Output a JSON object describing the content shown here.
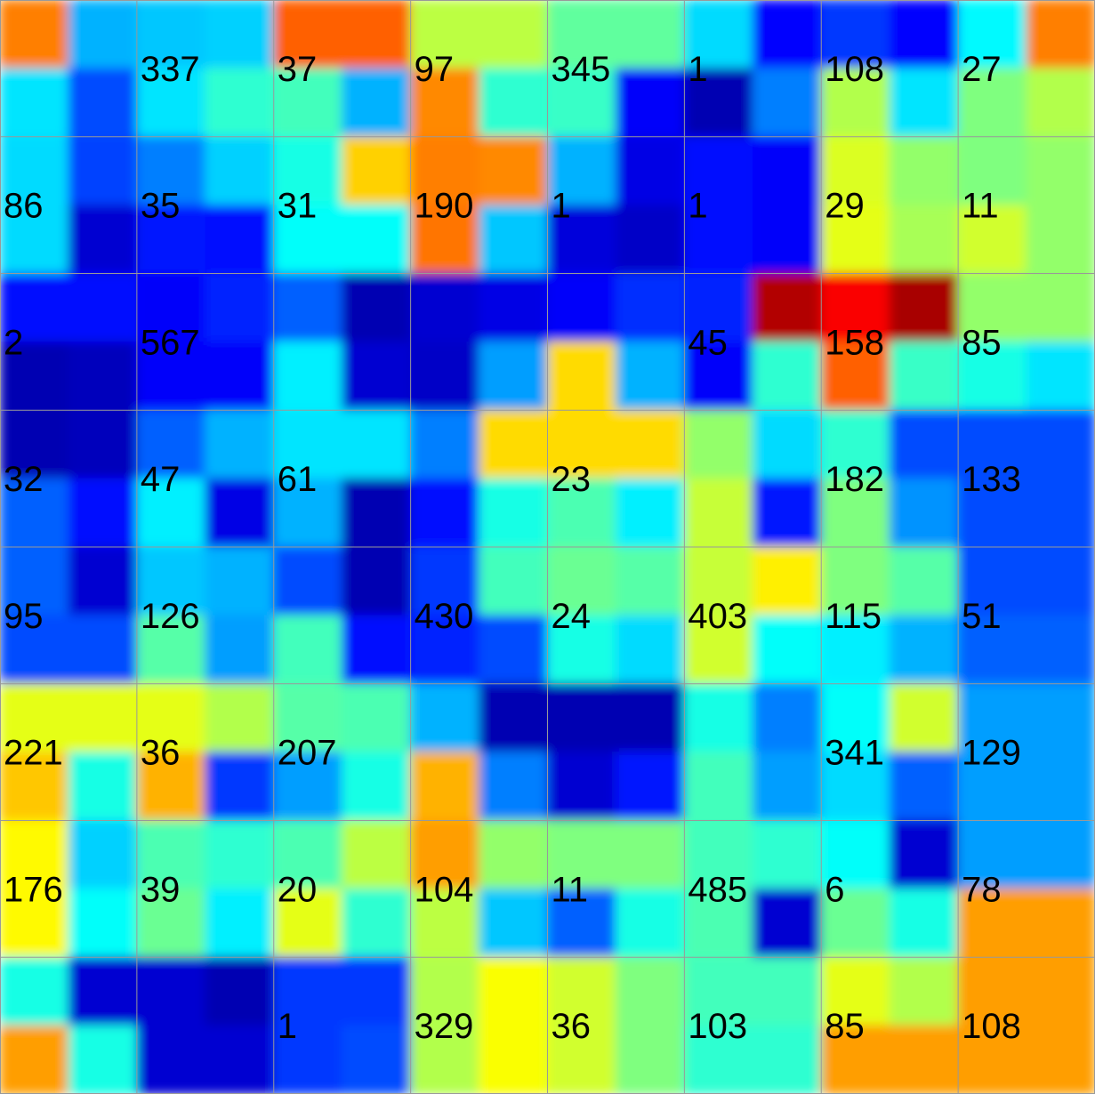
{
  "chart_data": {
    "type": "heatmap",
    "rows": 8,
    "cols": 8,
    "grid": true,
    "colormap": [
      "#00007f",
      "#0000ff",
      "#007fff",
      "#00ffff",
      "#7fff7f",
      "#ffff00",
      "#ff7f00",
      "#ff0000",
      "#7f0000"
    ],
    "colormap_note": "jet colormap; fine intensity field, values in 0-1",
    "intensity": [
      [
        0.75,
        0.3,
        0.32,
        0.33,
        0.78,
        0.78,
        0.56,
        0.56,
        0.47,
        0.47,
        0.34,
        0.13,
        0.18,
        0.13,
        0.37,
        0.75
      ],
      [
        0.35,
        0.2,
        0.35,
        0.42,
        0.44,
        0.3,
        0.74,
        0.42,
        0.43,
        0.12,
        0.05,
        0.25,
        0.55,
        0.35,
        0.5,
        0.55
      ],
      [
        0.34,
        0.19,
        0.25,
        0.33,
        0.4,
        0.67,
        0.75,
        0.74,
        0.3,
        0.1,
        0.14,
        0.12,
        0.59,
        0.52,
        0.5,
        0.52
      ],
      [
        0.34,
        0.08,
        0.15,
        0.14,
        0.38,
        0.38,
        0.76,
        0.32,
        0.09,
        0.07,
        0.14,
        0.12,
        0.6,
        0.54,
        0.58,
        0.52
      ],
      [
        0.14,
        0.14,
        0.12,
        0.16,
        0.22,
        0.05,
        0.08,
        0.1,
        0.12,
        0.17,
        0.16,
        0.95,
        0.88,
        0.96,
        0.52,
        0.52
      ],
      [
        0.05,
        0.06,
        0.12,
        0.12,
        0.36,
        0.08,
        0.07,
        0.28,
        0.66,
        0.3,
        0.12,
        0.42,
        0.78,
        0.43,
        0.4,
        0.35
      ],
      [
        0.05,
        0.06,
        0.22,
        0.3,
        0.35,
        0.35,
        0.25,
        0.66,
        0.66,
        0.66,
        0.52,
        0.34,
        0.42,
        0.2,
        0.2,
        0.2
      ],
      [
        0.22,
        0.14,
        0.36,
        0.1,
        0.3,
        0.05,
        0.14,
        0.4,
        0.45,
        0.36,
        0.57,
        0.15,
        0.5,
        0.27,
        0.2,
        0.2
      ],
      [
        0.22,
        0.08,
        0.32,
        0.3,
        0.2,
        0.05,
        0.18,
        0.44,
        0.48,
        0.46,
        0.57,
        0.64,
        0.5,
        0.46,
        0.2,
        0.2
      ],
      [
        0.2,
        0.2,
        0.46,
        0.28,
        0.44,
        0.14,
        0.16,
        0.2,
        0.4,
        0.34,
        0.58,
        0.38,
        0.36,
        0.3,
        0.22,
        0.22
      ],
      [
        0.6,
        0.6,
        0.6,
        0.55,
        0.46,
        0.45,
        0.3,
        0.05,
        0.05,
        0.05,
        0.4,
        0.25,
        0.38,
        0.58,
        0.28,
        0.28
      ],
      [
        0.68,
        0.4,
        0.7,
        0.18,
        0.28,
        0.4,
        0.7,
        0.25,
        0.08,
        0.15,
        0.44,
        0.28,
        0.34,
        0.22,
        0.28,
        0.28
      ],
      [
        0.63,
        0.33,
        0.45,
        0.42,
        0.45,
        0.56,
        0.72,
        0.52,
        0.5,
        0.5,
        0.44,
        0.42,
        0.38,
        0.08,
        0.28,
        0.28
      ],
      [
        0.63,
        0.38,
        0.48,
        0.36,
        0.6,
        0.42,
        0.56,
        0.32,
        0.22,
        0.4,
        0.45,
        0.08,
        0.48,
        0.4,
        0.72,
        0.72
      ],
      [
        0.4,
        0.08,
        0.08,
        0.05,
        0.18,
        0.18,
        0.55,
        0.62,
        0.58,
        0.5,
        0.44,
        0.44,
        0.6,
        0.55,
        0.72,
        0.72
      ],
      [
        0.72,
        0.4,
        0.08,
        0.08,
        0.18,
        0.2,
        0.55,
        0.62,
        0.58,
        0.5,
        0.42,
        0.42,
        0.72,
        0.72,
        0.72,
        0.72
      ]
    ],
    "labels": [
      [
        "",
        "337",
        "37",
        "97",
        "345",
        "1",
        "108",
        "27"
      ],
      [
        "86",
        "35",
        "31",
        "190",
        "1",
        "1",
        "29",
        "11"
      ],
      [
        "2",
        "567",
        "",
        "",
        "",
        "45",
        "158",
        "85"
      ],
      [
        "32",
        "47",
        "61",
        "",
        "23",
        "",
        "182",
        "133"
      ],
      [
        "95",
        "126",
        "",
        "430",
        "24",
        "403",
        "115",
        "51"
      ],
      [
        "221",
        "36",
        "207",
        "",
        "",
        "",
        "341",
        "129"
      ],
      [
        "176",
        "39",
        "20",
        "104",
        "11",
        "485",
        "6",
        "78"
      ],
      [
        "",
        "",
        "1",
        "329",
        "36",
        "103",
        "85",
        "108"
      ]
    ],
    "gridline_color": "#999999"
  }
}
